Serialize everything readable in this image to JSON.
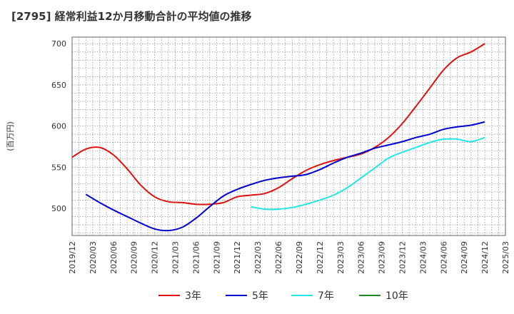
{
  "chart_data": {
    "type": "line",
    "title": "[2795]  経常利益12か月移動合計の平均値の推移",
    "ylabel": "(百万円)",
    "xlabel": "",
    "ylim": [
      467,
      708
    ],
    "yticks": [
      500,
      550,
      600,
      650,
      700
    ],
    "x_ticks": [
      "2019/12",
      "2020/03",
      "2020/06",
      "2020/09",
      "2020/12",
      "2021/03",
      "2021/06",
      "2021/09",
      "2021/12",
      "2022/03",
      "2022/06",
      "2022/09",
      "2022/12",
      "2023/03",
      "2023/06",
      "2023/09",
      "2023/12",
      "2024/03",
      "2024/06",
      "2024/09",
      "2024/12",
      "2025/03"
    ],
    "grid": true,
    "legend_position": "bottom",
    "series": [
      {
        "name": "3年",
        "color": "#dd1111",
        "points": [
          [
            "2019/12",
            562
          ],
          [
            "2020/02",
            572
          ],
          [
            "2020/04",
            574
          ],
          [
            "2020/06",
            565
          ],
          [
            "2020/08",
            548
          ],
          [
            "2020/10",
            528
          ],
          [
            "2020/12",
            514
          ],
          [
            "2021/02",
            508
          ],
          [
            "2021/04",
            507
          ],
          [
            "2021/06",
            505
          ],
          [
            "2021/08",
            505
          ],
          [
            "2021/10",
            507
          ],
          [
            "2021/12",
            514
          ],
          [
            "2022/02",
            516
          ],
          [
            "2022/04",
            518
          ],
          [
            "2022/06",
            525
          ],
          [
            "2022/08",
            536
          ],
          [
            "2022/10",
            546
          ],
          [
            "2022/12",
            553
          ],
          [
            "2023/02",
            558
          ],
          [
            "2023/04",
            562
          ],
          [
            "2023/06",
            566
          ],
          [
            "2023/08",
            574
          ],
          [
            "2023/10",
            586
          ],
          [
            "2023/12",
            603
          ],
          [
            "2024/02",
            624
          ],
          [
            "2024/04",
            646
          ],
          [
            "2024/06",
            668
          ],
          [
            "2024/08",
            683
          ],
          [
            "2024/10",
            690
          ],
          [
            "2024/12",
            700
          ]
        ]
      },
      {
        "name": "5年",
        "color": "#0000cc",
        "points": [
          [
            "2020/02",
            517
          ],
          [
            "2020/04",
            507
          ],
          [
            "2020/06",
            498
          ],
          [
            "2020/08",
            490
          ],
          [
            "2020/10",
            482
          ],
          [
            "2020/12",
            475
          ],
          [
            "2021/02",
            473
          ],
          [
            "2021/04",
            477
          ],
          [
            "2021/06",
            488
          ],
          [
            "2021/08",
            502
          ],
          [
            "2021/10",
            515
          ],
          [
            "2021/12",
            523
          ],
          [
            "2022/02",
            529
          ],
          [
            "2022/04",
            534
          ],
          [
            "2022/06",
            537
          ],
          [
            "2022/08",
            539
          ],
          [
            "2022/10",
            541
          ],
          [
            "2022/12",
            547
          ],
          [
            "2023/02",
            555
          ],
          [
            "2023/04",
            562
          ],
          [
            "2023/06",
            567
          ],
          [
            "2023/08",
            573
          ],
          [
            "2023/10",
            577
          ],
          [
            "2023/12",
            581
          ],
          [
            "2024/02",
            586
          ],
          [
            "2024/04",
            590
          ],
          [
            "2024/06",
            596
          ],
          [
            "2024/08",
            599
          ],
          [
            "2024/10",
            601
          ],
          [
            "2024/12",
            605
          ]
        ]
      },
      {
        "name": "7年",
        "color": "#22e5e5",
        "points": [
          [
            "2022/02",
            502
          ],
          [
            "2022/04",
            499
          ],
          [
            "2022/06",
            499
          ],
          [
            "2022/08",
            501
          ],
          [
            "2022/10",
            505
          ],
          [
            "2022/12",
            510
          ],
          [
            "2023/02",
            516
          ],
          [
            "2023/04",
            525
          ],
          [
            "2023/06",
            537
          ],
          [
            "2023/08",
            549
          ],
          [
            "2023/10",
            561
          ],
          [
            "2023/12",
            568
          ],
          [
            "2024/02",
            574
          ],
          [
            "2024/04",
            580
          ],
          [
            "2024/06",
            584
          ],
          [
            "2024/08",
            584
          ],
          [
            "2024/10",
            581
          ],
          [
            "2024/12",
            586
          ]
        ]
      },
      {
        "name": "10年",
        "color": "#228822",
        "points": []
      }
    ]
  }
}
